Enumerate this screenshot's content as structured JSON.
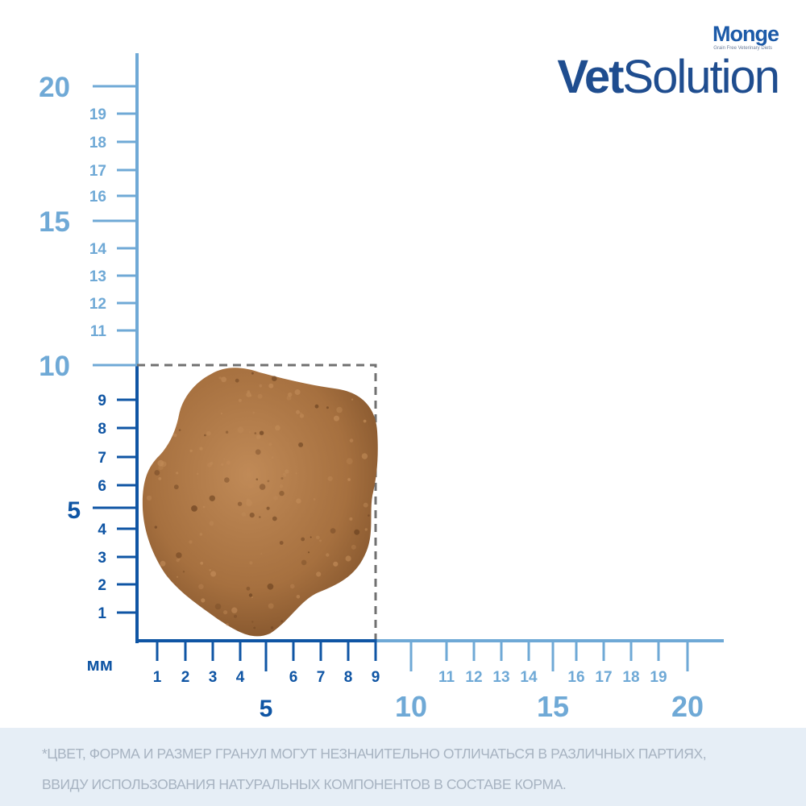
{
  "brand": {
    "maker": "Monge",
    "maker_sub": "Grain Free Veterinary Diets",
    "product_bold": "Vet",
    "product_light": "Solution"
  },
  "ruler": {
    "unit_label": "мм",
    "y_minor": [
      "1",
      "2",
      "3",
      "4",
      "6",
      "7",
      "8",
      "9",
      "11",
      "12",
      "13",
      "14",
      "16",
      "17",
      "18",
      "19"
    ],
    "y_major": [
      "5",
      "10",
      "15",
      "20"
    ],
    "x_minor": [
      "1",
      "2",
      "3",
      "4",
      "6",
      "7",
      "8",
      "9",
      "11",
      "12",
      "13",
      "14",
      "16",
      "17",
      "18",
      "19"
    ],
    "x_major": [
      "5",
      "10",
      "15",
      "20"
    ],
    "granule_size_mm": 9,
    "colors": {
      "dark": "#0f55a4",
      "light": "#6fa9d6",
      "box": "#707070"
    }
  },
  "granule": {
    "colors": {
      "base": "#a6703f",
      "light": "#c08a57",
      "dark": "#6e4422"
    }
  },
  "disclaimer": {
    "line1": "*ЦВЕТ, ФОРМА И РАЗМЕР ГРАНУЛ МОГУТ НЕЗНАЧИТЕЛЬНО ОТЛИЧАТЬСЯ В РАЗЛИЧНЫХ ПАРТИЯХ,",
    "line2": "ВВИДУ ИСПОЛЬЗОВАНИЯ НАТУРАЛЬНЫХ КОМПОНЕНТОВ В СОСТАВЕ КОРМА."
  }
}
